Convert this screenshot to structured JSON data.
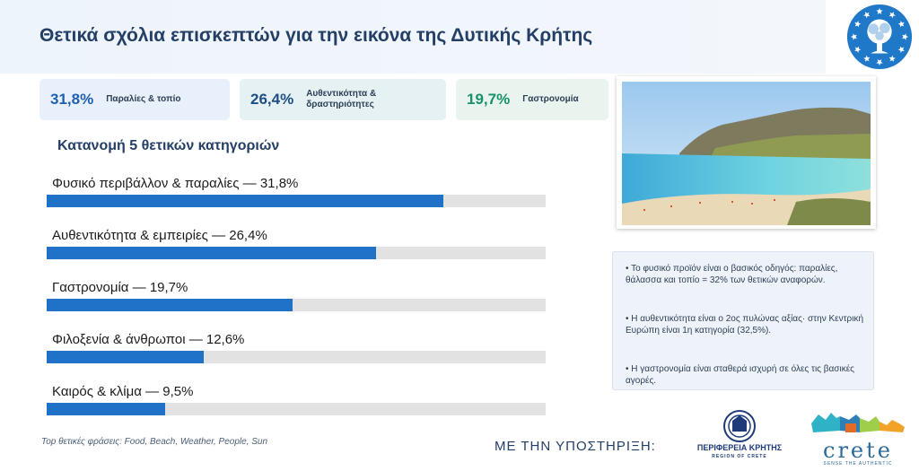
{
  "header": {
    "title": "Θετικά σχόλια επισκεπτών για την εικόνα της Δυτικής Κρήτης"
  },
  "kpis": [
    {
      "value": "31,8%",
      "label": "Παραλίες & τοπίο",
      "color": "#1f5fae",
      "bg": "#e8f0fb"
    },
    {
      "value": "26,4%",
      "label": "Αυθεντικότητα & δραστηριότητες",
      "color": "#1f4f80",
      "bg": "#e6f1f4"
    },
    {
      "value": "19,7%",
      "label": "Γαστρονομία",
      "color": "#17916a",
      "bg": "#e9f4ef"
    }
  ],
  "chart_data": {
    "type": "bar",
    "orientation": "horizontal",
    "title": "Κατανομή 5 θετικών κατηγοριών",
    "categories": [
      "Φυσικό περιβάλλον & παραλίες",
      "Αυθεντικότητα & εμπειρίες",
      "Γαστρονομία",
      "Φιλοξενία & άνθρωποι",
      "Καιρός & κλίμα"
    ],
    "values": [
      31.8,
      26.4,
      19.7,
      12.6,
      9.5
    ],
    "labels": [
      "Φυσικό περιβάλλον & παραλίες — 31,8%",
      "Αυθεντικότητα & εμπειρίες — 26,4%",
      "Γαστρονομία — 19,7%",
      "Φιλοξενία & άνθρωποι — 12,6%",
      "Καιρός & κλίμα — 9,5%"
    ],
    "xlim": [
      0,
      40
    ],
    "bar_color": "#1f72c8",
    "track_color": "#e2e2e2",
    "grid": false,
    "legend": "none"
  },
  "notes": [
    "• Το φυσικό προϊόν είναι ο βασικός οδηγός: παραλίες, θάλασσα και τοπίο = 32% των θετικών αναφορών.",
    "• Η αυθεντικότητα είναι ο 2ος πυλώνας αξίας· στην Κεντρική Ευρώπη είναι 1η κατηγορία (32,5%).",
    "• Η γαστρονομία είναι σταθερά ισχυρή σε όλες τις βασικές αγορές."
  ],
  "footer": {
    "phrases": "Top θετικές φράσεις: Food, Beach, Weather, People, Sun",
    "support": "ΜΕ ΤΗΝ ΥΠΟΣΤΗΡΙΞΗ:",
    "region_name": "ΠΕΡΙΦΕΡΕΙΑ ΚΡΗΤΗΣ",
    "region_sub": "REGION OF CRETE",
    "crete_word": "crete",
    "crete_tag": "SENSE THE AUTHENTIC"
  },
  "images": {
    "photo": "beach-landscape-photo",
    "emblem": "eu-emblem-tree-icon"
  }
}
